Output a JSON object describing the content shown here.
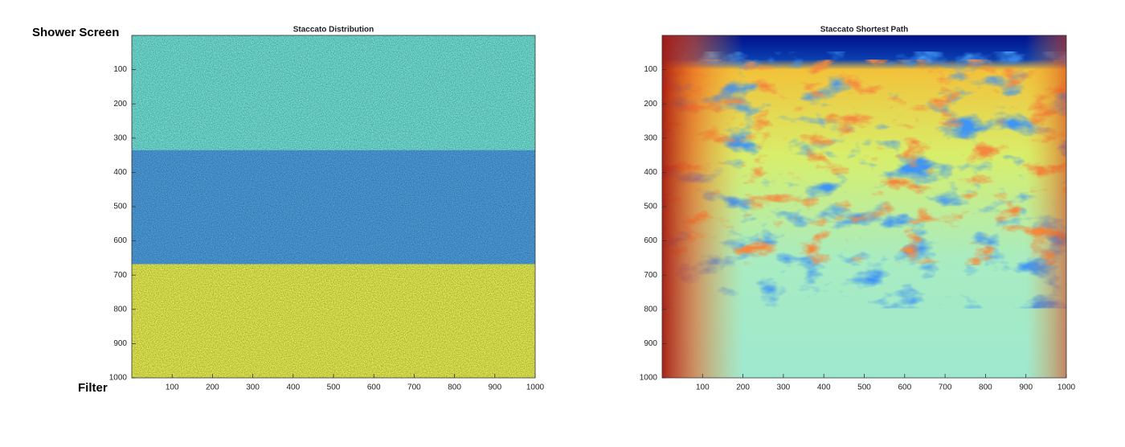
{
  "annotations": {
    "top": "Shower Screen",
    "bottom": "Filter"
  },
  "chart_data": [
    {
      "type": "image",
      "title": "Staccato Distribution",
      "xlim": [
        0,
        1000
      ],
      "ylim": [
        1000,
        0
      ],
      "xticks": [
        100,
        200,
        300,
        400,
        500,
        600,
        700,
        800,
        900,
        1000
      ],
      "yticks": [
        100,
        200,
        300,
        400,
        500,
        600,
        700,
        800,
        900,
        1000
      ],
      "bands": [
        {
          "y": [
            0,
            335
          ],
          "color": "#74e8dd"
        },
        {
          "y": [
            335,
            668
          ],
          "color": "#4ea3e6"
        },
        {
          "y": [
            668,
            1000
          ],
          "color": "#edf552"
        }
      ]
    },
    {
      "type": "image",
      "title": "Staccato Shortest Path",
      "xlim": [
        0,
        1000
      ],
      "ylim": [
        1000,
        0
      ],
      "xticks": [
        100,
        200,
        300,
        400,
        500,
        600,
        700,
        800,
        900,
        1000
      ],
      "yticks": [
        100,
        200,
        300,
        400,
        500,
        600,
        700,
        800,
        900,
        1000
      ]
    }
  ]
}
